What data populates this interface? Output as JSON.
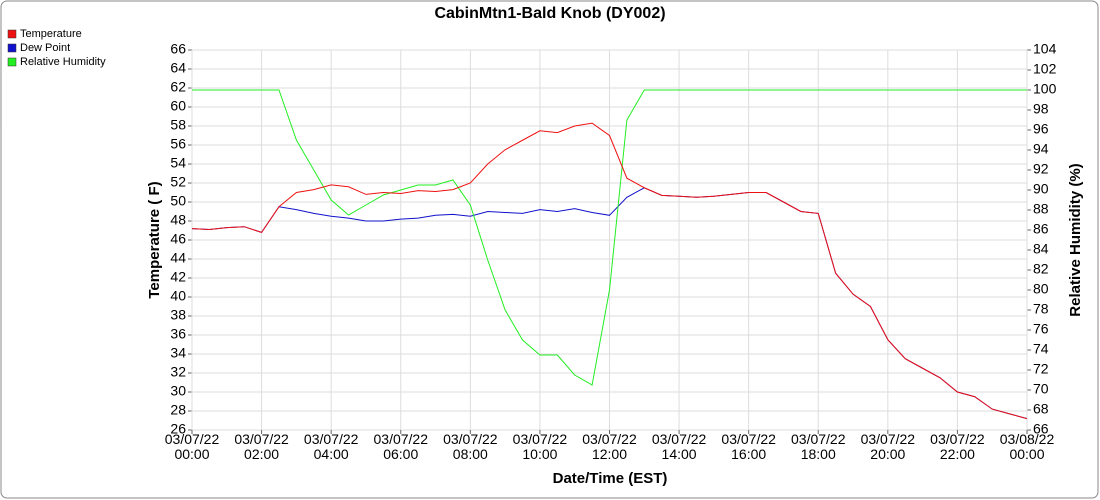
{
  "chart_data": {
    "type": "line",
    "title": "CabinMtn1-Bald Knob (DY002)",
    "x_label": "Date/Time (EST)",
    "y_label": "Temperature ( F)",
    "y2_label": "Relative Humidity (%)",
    "x": [
      0,
      0.5,
      1,
      1.5,
      2,
      2.5,
      3,
      3.5,
      4,
      4.5,
      5,
      5.5,
      6,
      6.5,
      7,
      7.5,
      8,
      8.5,
      9,
      9.5,
      10,
      10.5,
      11,
      11.5,
      12,
      12.5,
      13,
      13.5,
      14,
      14.5,
      15,
      15.5,
      16,
      16.5,
      17,
      17.5,
      18,
      18.5,
      19,
      19.5,
      20,
      20.5,
      21,
      21.5,
      22,
      22.5,
      23,
      23.5,
      24
    ],
    "series": [
      {
        "name": "Temperature",
        "color": "#ee1111",
        "axis": "y",
        "values": [
          47.2,
          47.1,
          47.3,
          47.4,
          46.8,
          49.5,
          51.0,
          51.3,
          51.8,
          51.6,
          50.8,
          51.0,
          50.9,
          51.2,
          51.1,
          51.3,
          52.0,
          54.0,
          55.5,
          56.5,
          57.5,
          57.3,
          58.0,
          58.3,
          57.0,
          52.5,
          51.5,
          50.7,
          50.6,
          50.5,
          50.6,
          50.8,
          51.0,
          51.0,
          50.0,
          49.0,
          48.8,
          42.5,
          40.3,
          39.0,
          35.5,
          33.5,
          32.5,
          31.5,
          30.0,
          29.5,
          28.2,
          27.7,
          27.2
        ]
      },
      {
        "name": "Dew Point",
        "color": "#1111cc",
        "axis": "y",
        "values": [
          47.2,
          47.1,
          47.3,
          47.4,
          46.8,
          49.5,
          49.2,
          48.8,
          48.5,
          48.3,
          48.0,
          48.0,
          48.2,
          48.3,
          48.6,
          48.7,
          48.5,
          49.0,
          48.9,
          48.8,
          49.2,
          49.0,
          49.3,
          48.9,
          48.6,
          50.5,
          51.5,
          50.7,
          50.6,
          50.5,
          50.6,
          50.8,
          51.0,
          51.0,
          50.0,
          49.0,
          48.8,
          42.5,
          40.3,
          39.0,
          35.5,
          33.5,
          32.5,
          31.5,
          30.0,
          29.5,
          28.2,
          27.7,
          27.2
        ]
      },
      {
        "name": "Relative Humidity",
        "color": "#22ee22",
        "axis": "y2",
        "values": [
          100,
          100,
          100,
          100,
          100,
          100,
          95,
          92,
          89,
          87.5,
          88.5,
          89.5,
          90.0,
          90.5,
          90.5,
          91.0,
          88.5,
          83,
          78,
          75,
          73.5,
          73.5,
          71.5,
          70.5,
          80,
          97,
          100,
          100,
          100,
          100,
          100,
          100,
          100,
          100,
          100,
          100,
          100,
          100,
          100,
          100,
          100,
          100,
          100,
          100,
          100,
          100,
          100,
          100,
          100
        ]
      }
    ],
    "xlim": [
      0,
      24
    ],
    "xticks": [
      {
        "value": 0,
        "label": "03/07/22\n00:00"
      },
      {
        "value": 2,
        "label": "03/07/22\n02:00"
      },
      {
        "value": 4,
        "label": "03/07/22\n04:00"
      },
      {
        "value": 6,
        "label": "03/07/22\n06:00"
      },
      {
        "value": 8,
        "label": "03/07/22\n08:00"
      },
      {
        "value": 10,
        "label": "03/07/22\n10:00"
      },
      {
        "value": 12,
        "label": "03/07/22\n12:00"
      },
      {
        "value": 14,
        "label": "03/07/22\n14:00"
      },
      {
        "value": 16,
        "label": "03/07/22\n16:00"
      },
      {
        "value": 18,
        "label": "03/07/22\n18:00"
      },
      {
        "value": 20,
        "label": "03/07/22\n20:00"
      },
      {
        "value": 22,
        "label": "03/07/22\n22:00"
      },
      {
        "value": 24,
        "label": "03/08/22\n00:00"
      }
    ],
    "ylim": [
      26,
      66
    ],
    "yticks": [
      26,
      28,
      30,
      32,
      34,
      36,
      38,
      40,
      42,
      44,
      46,
      48,
      50,
      52,
      54,
      56,
      58,
      60,
      62,
      64,
      66
    ],
    "y2lim": [
      66,
      104
    ],
    "y2ticks": [
      66,
      68,
      70,
      72,
      74,
      76,
      78,
      80,
      82,
      84,
      86,
      88,
      90,
      92,
      94,
      96,
      98,
      100,
      102,
      104
    ],
    "grid": true,
    "legend": "top-left"
  }
}
